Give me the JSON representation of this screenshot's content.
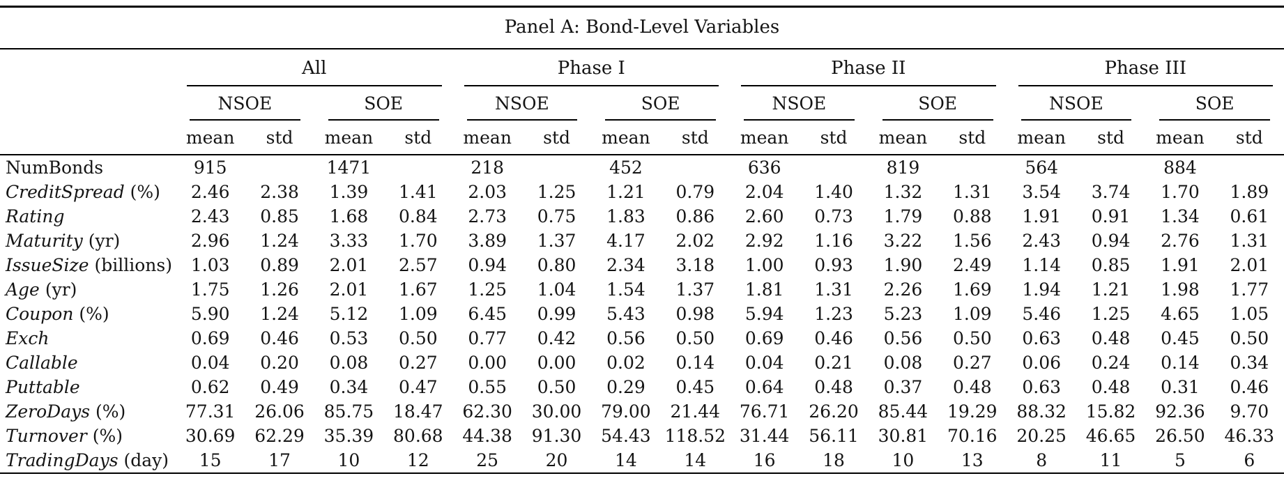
{
  "table": {
    "title": "Panel A: Bond-Level Variables",
    "groups": [
      "All",
      "Phase I",
      "Phase II",
      "Phase III"
    ],
    "subgroups": [
      "NSOE",
      "SOE"
    ],
    "stat_headers": [
      "mean",
      "std"
    ],
    "rows": [
      {
        "label": "NumBonds",
        "unit": "",
        "italic": false,
        "values": [
          "915",
          "",
          "1471",
          "",
          "218",
          "",
          "452",
          "",
          "636",
          "",
          "819",
          "",
          "564",
          "",
          "884",
          ""
        ]
      },
      {
        "label": "CreditSpread",
        "unit": "(%)",
        "italic": true,
        "values": [
          "2.46",
          "2.38",
          "1.39",
          "1.41",
          "2.03",
          "1.25",
          "1.21",
          "0.79",
          "2.04",
          "1.40",
          "1.32",
          "1.31",
          "3.54",
          "3.74",
          "1.70",
          "1.89"
        ]
      },
      {
        "label": "Rating",
        "unit": "",
        "italic": true,
        "values": [
          "2.43",
          "0.85",
          "1.68",
          "0.84",
          "2.73",
          "0.75",
          "1.83",
          "0.86",
          "2.60",
          "0.73",
          "1.79",
          "0.88",
          "1.91",
          "0.91",
          "1.34",
          "0.61"
        ]
      },
      {
        "label": "Maturity",
        "unit": "(yr)",
        "italic": true,
        "values": [
          "2.96",
          "1.24",
          "3.33",
          "1.70",
          "3.89",
          "1.37",
          "4.17",
          "2.02",
          "2.92",
          "1.16",
          "3.22",
          "1.56",
          "2.43",
          "0.94",
          "2.76",
          "1.31"
        ]
      },
      {
        "label": "IssueSize",
        "unit": "(billions)",
        "italic": true,
        "values": [
          "1.03",
          "0.89",
          "2.01",
          "2.57",
          "0.94",
          "0.80",
          "2.34",
          "3.18",
          "1.00",
          "0.93",
          "1.90",
          "2.49",
          "1.14",
          "0.85",
          "1.91",
          "2.01"
        ]
      },
      {
        "label": "Age",
        "unit": "(yr)",
        "italic": true,
        "values": [
          "1.75",
          "1.26",
          "2.01",
          "1.67",
          "1.25",
          "1.04",
          "1.54",
          "1.37",
          "1.81",
          "1.31",
          "2.26",
          "1.69",
          "1.94",
          "1.21",
          "1.98",
          "1.77"
        ]
      },
      {
        "label": "Coupon",
        "unit": "(%)",
        "italic": true,
        "values": [
          "5.90",
          "1.24",
          "5.12",
          "1.09",
          "6.45",
          "0.99",
          "5.43",
          "0.98",
          "5.94",
          "1.23",
          "5.23",
          "1.09",
          "5.46",
          "1.25",
          "4.65",
          "1.05"
        ]
      },
      {
        "label": "Exch",
        "unit": "",
        "italic": true,
        "values": [
          "0.69",
          "0.46",
          "0.53",
          "0.50",
          "0.77",
          "0.42",
          "0.56",
          "0.50",
          "0.69",
          "0.46",
          "0.56",
          "0.50",
          "0.63",
          "0.48",
          "0.45",
          "0.50"
        ]
      },
      {
        "label": "Callable",
        "unit": "",
        "italic": true,
        "values": [
          "0.04",
          "0.20",
          "0.08",
          "0.27",
          "0.00",
          "0.00",
          "0.02",
          "0.14",
          "0.04",
          "0.21",
          "0.08",
          "0.27",
          "0.06",
          "0.24",
          "0.14",
          "0.34"
        ]
      },
      {
        "label": "Puttable",
        "unit": "",
        "italic": true,
        "values": [
          "0.62",
          "0.49",
          "0.34",
          "0.47",
          "0.55",
          "0.50",
          "0.29",
          "0.45",
          "0.64",
          "0.48",
          "0.37",
          "0.48",
          "0.63",
          "0.48",
          "0.31",
          "0.46"
        ]
      },
      {
        "label": "ZeroDays",
        "unit": "(%)",
        "italic": true,
        "values": [
          "77.31",
          "26.06",
          "85.75",
          "18.47",
          "62.30",
          "30.00",
          "79.00",
          "21.44",
          "76.71",
          "26.20",
          "85.44",
          "19.29",
          "88.32",
          "15.82",
          "92.36",
          "9.70"
        ]
      },
      {
        "label": "Turnover",
        "unit": "(%)",
        "italic": true,
        "values": [
          "30.69",
          "62.29",
          "35.39",
          "80.68",
          "44.38",
          "91.30",
          "54.43",
          "118.52",
          "31.44",
          "56.11",
          "30.81",
          "70.16",
          "20.25",
          "46.65",
          "26.50",
          "46.33"
        ]
      },
      {
        "label": "TradingDays",
        "unit": "(day)",
        "italic": true,
        "values": [
          "15",
          "17",
          "10",
          "12",
          "25",
          "20",
          "14",
          "14",
          "16",
          "18",
          "10",
          "13",
          "8",
          "11",
          "5",
          "6"
        ]
      }
    ]
  }
}
